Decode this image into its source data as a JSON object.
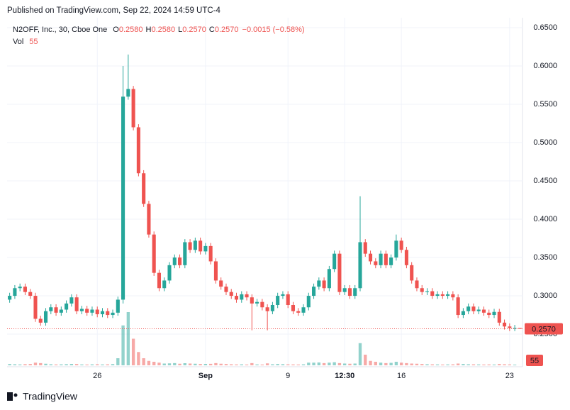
{
  "chart_data": {
    "type": "candlestick",
    "header": "Published on TradingView.com, Sep 22, 2024 14:59 UTC-4",
    "legend": {
      "symbol": "N2OFF, Inc., 30, Cboe One",
      "fields": [
        {
          "label": "O",
          "value": "0.2580"
        },
        {
          "label": "H",
          "value": "0.2580"
        },
        {
          "label": "L",
          "value": "0.2570"
        },
        {
          "label": "C",
          "value": "0.2570"
        }
      ],
      "change": "−0.0015 (−0.58%)",
      "volume_label": "Vol"
    },
    "brand": "TradingView",
    "up_color": "#26a69a",
    "down_color": "#ef5350",
    "grid": true,
    "ylim": [
      0.2093,
      0.6769
    ],
    "yticks": [
      {
        "value": 0.25,
        "label": "0.2500"
      },
      {
        "value": 0.3,
        "label": "0.3000"
      },
      {
        "value": 0.35,
        "label": "0.3500"
      },
      {
        "value": 0.4,
        "label": "0.4000"
      },
      {
        "value": 0.45,
        "label": "0.4500"
      },
      {
        "value": 0.5,
        "label": "0.5000"
      },
      {
        "value": 0.55,
        "label": "0.5500"
      },
      {
        "value": 0.6,
        "label": "0.6000"
      },
      {
        "value": 0.65,
        "label": "0.6500"
      }
    ],
    "xlim": [
      -0.5,
      99.5
    ],
    "xticks": [
      {
        "value": 17,
        "label": "26"
      },
      {
        "value": 38,
        "label": "Sep"
      },
      {
        "value": 54,
        "label": "9"
      },
      {
        "value": 65,
        "label": "12:30"
      },
      {
        "value": 76,
        "label": "16"
      },
      {
        "value": 97,
        "label": "23"
      }
    ],
    "open": [
      0.295,
      0.3,
      0.31,
      0.312,
      0.305,
      0.3,
      0.27,
      0.265,
      0.28,
      0.285,
      0.278,
      0.282,
      0.29,
      0.298,
      0.28,
      0.283,
      0.278,
      0.282,
      0.276,
      0.28,
      0.275,
      0.278,
      0.295,
      0.56,
      0.57,
      0.52,
      0.46,
      0.42,
      0.38,
      0.33,
      0.31,
      0.32,
      0.34,
      0.35,
      0.34,
      0.37,
      0.36,
      0.372,
      0.358,
      0.365,
      0.345,
      0.32,
      0.312,
      0.305,
      0.3,
      0.295,
      0.302,
      0.298,
      0.29,
      0.292,
      0.285,
      0.28,
      0.288,
      0.3,
      0.302,
      0.288,
      0.28,
      0.278,
      0.285,
      0.3,
      0.312,
      0.32,
      0.31,
      0.335,
      0.355,
      0.305,
      0.31,
      0.3,
      0.31,
      0.37,
      0.355,
      0.345,
      0.34,
      0.355,
      0.34,
      0.35,
      0.372,
      0.36,
      0.34,
      0.32,
      0.31,
      0.305,
      0.306,
      0.3,
      0.302,
      0.3,
      0.302,
      0.298,
      0.275,
      0.28,
      0.286,
      0.28,
      0.282,
      0.278,
      0.275,
      0.279,
      0.265,
      0.26,
      0.258,
      0.258
    ],
    "high": [
      0.304,
      0.314,
      0.316,
      0.316,
      0.309,
      0.304,
      0.274,
      0.284,
      0.289,
      0.289,
      0.286,
      0.294,
      0.302,
      0.302,
      0.287,
      0.287,
      0.286,
      0.286,
      0.284,
      0.284,
      0.282,
      0.299,
      0.6,
      0.615,
      0.574,
      0.524,
      0.464,
      0.424,
      0.384,
      0.334,
      0.324,
      0.344,
      0.354,
      0.354,
      0.374,
      0.374,
      0.376,
      0.376,
      0.369,
      0.369,
      0.349,
      0.324,
      0.316,
      0.309,
      0.304,
      0.306,
      0.306,
      0.302,
      0.296,
      0.296,
      0.289,
      0.292,
      0.304,
      0.306,
      0.306,
      0.292,
      0.284,
      0.289,
      0.304,
      0.316,
      0.324,
      0.324,
      0.339,
      0.359,
      0.359,
      0.314,
      0.314,
      0.314,
      0.43,
      0.374,
      0.359,
      0.349,
      0.359,
      0.359,
      0.354,
      0.38,
      0.376,
      0.364,
      0.344,
      0.324,
      0.314,
      0.31,
      0.31,
      0.306,
      0.306,
      0.306,
      0.306,
      0.302,
      0.284,
      0.29,
      0.29,
      0.286,
      0.286,
      0.282,
      0.283,
      0.283,
      0.269,
      0.264,
      0.262,
      0.258
    ],
    "low": [
      0.291,
      0.296,
      0.306,
      0.301,
      0.296,
      0.266,
      0.261,
      0.261,
      0.276,
      0.274,
      0.274,
      0.278,
      0.286,
      0.276,
      0.276,
      0.274,
      0.274,
      0.272,
      0.272,
      0.271,
      0.271,
      0.274,
      0.29,
      0.556,
      0.516,
      0.456,
      0.416,
      0.376,
      0.326,
      0.306,
      0.306,
      0.316,
      0.336,
      0.336,
      0.336,
      0.356,
      0.356,
      0.354,
      0.354,
      0.341,
      0.316,
      0.308,
      0.301,
      0.296,
      0.291,
      0.291,
      0.294,
      0.255,
      0.286,
      0.281,
      0.255,
      0.276,
      0.284,
      0.296,
      0.284,
      0.276,
      0.274,
      0.274,
      0.281,
      0.296,
      0.308,
      0.306,
      0.306,
      0.331,
      0.301,
      0.301,
      0.296,
      0.296,
      0.306,
      0.351,
      0.341,
      0.336,
      0.336,
      0.336,
      0.336,
      0.346,
      0.356,
      0.336,
      0.316,
      0.306,
      0.301,
      0.301,
      0.296,
      0.296,
      0.296,
      0.296,
      0.294,
      0.271,
      0.271,
      0.276,
      0.276,
      0.276,
      0.274,
      0.271,
      0.271,
      0.261,
      0.256,
      0.254,
      0.254,
      0.257
    ],
    "close": [
      0.3,
      0.31,
      0.312,
      0.305,
      0.3,
      0.27,
      0.265,
      0.28,
      0.285,
      0.278,
      0.282,
      0.29,
      0.298,
      0.28,
      0.283,
      0.278,
      0.282,
      0.276,
      0.28,
      0.275,
      0.278,
      0.295,
      0.56,
      0.57,
      0.52,
      0.46,
      0.42,
      0.38,
      0.33,
      0.31,
      0.32,
      0.34,
      0.35,
      0.34,
      0.37,
      0.36,
      0.372,
      0.358,
      0.365,
      0.345,
      0.32,
      0.312,
      0.305,
      0.3,
      0.295,
      0.302,
      0.298,
      0.29,
      0.292,
      0.285,
      0.28,
      0.288,
      0.3,
      0.302,
      0.288,
      0.28,
      0.278,
      0.285,
      0.3,
      0.312,
      0.32,
      0.31,
      0.335,
      0.355,
      0.305,
      0.31,
      0.3,
      0.31,
      0.37,
      0.355,
      0.345,
      0.34,
      0.355,
      0.34,
      0.35,
      0.372,
      0.36,
      0.34,
      0.32,
      0.31,
      0.305,
      0.306,
      0.3,
      0.302,
      0.3,
      0.302,
      0.298,
      0.275,
      0.28,
      0.286,
      0.28,
      0.282,
      0.278,
      0.275,
      0.279,
      0.265,
      0.26,
      0.258,
      0.258,
      0.257
    ],
    "volume": [
      1500,
      1200,
      1000,
      1300,
      1500,
      3000,
      2500,
      1800,
      1200,
      1000,
      1100,
      1300,
      1600,
      1500,
      1000,
      900,
      1100,
      1200,
      1000,
      1100,
      1400,
      8000,
      45000,
      60000,
      30000,
      15000,
      8000,
      5000,
      4000,
      3000,
      2000,
      2200,
      2500,
      1800,
      2400,
      2000,
      1800,
      1500,
      1600,
      1700,
      2500,
      1800,
      1500,
      1200,
      1000,
      1100,
      900,
      2500,
      1000,
      900,
      2200,
      1200,
      1500,
      1300,
      1100,
      1000,
      900,
      1100,
      3000,
      3000,
      3200,
      2500,
      3000,
      3500,
      2500,
      2000,
      1800,
      2000,
      25000,
      12000,
      5000,
      4000,
      3000,
      2500,
      2800,
      4000,
      3000,
      2500,
      2000,
      1800,
      1500,
      1200,
      1100,
      1000,
      900,
      1000,
      1100,
      2000,
      1500,
      1200,
      1100,
      1000,
      900,
      1000,
      900,
      1500,
      1200,
      1000,
      800,
      55
    ]
  }
}
